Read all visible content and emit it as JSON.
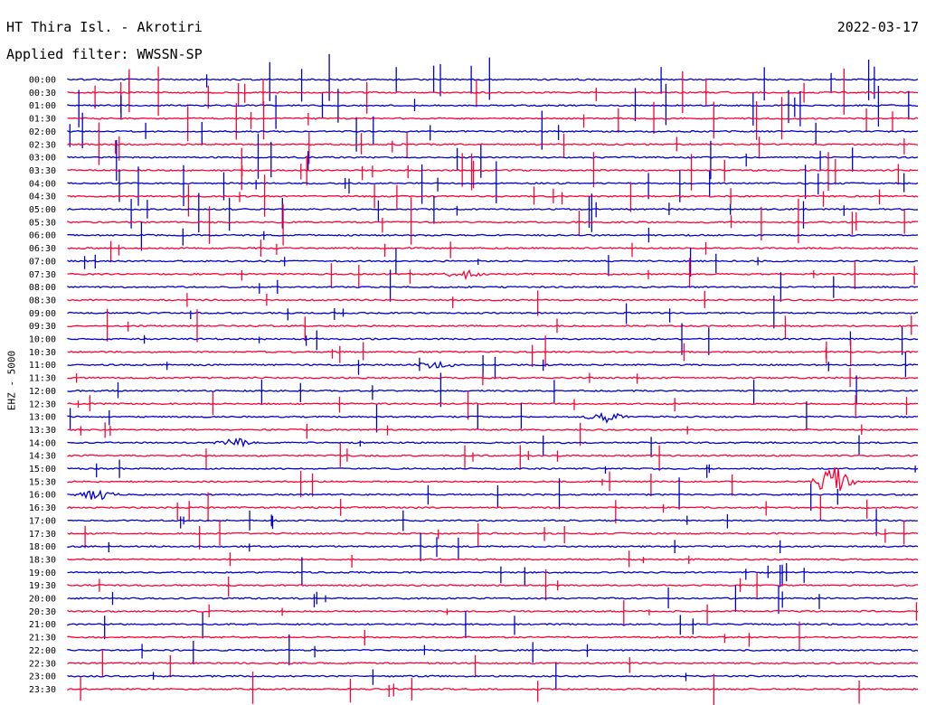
{
  "header": {
    "station": "HT Thira Isl. - Akrotiri",
    "date": "2022-03-17",
    "filter": "Applied filter: WWSSN-SP",
    "channel": "EHZ - 5000"
  },
  "colors": {
    "trace_a": "#0000cc",
    "trace_b": "#ff0033",
    "background": "#ffffff",
    "text": "#000000"
  },
  "chart_data": {
    "type": "line",
    "title": "HT Thira Isl. - Akrotiri",
    "date": "2022-03-17",
    "filter": "WWSSN-SP",
    "ylabel": "EHZ - 5000",
    "xlabel": "",
    "grid": false,
    "legend": "none",
    "row_labels": [
      "00:00",
      "00:30",
      "01:00",
      "01:30",
      "02:00",
      "02:30",
      "03:00",
      "03:30",
      "04:00",
      "04:30",
      "05:00",
      "05:30",
      "06:00",
      "06:30",
      "07:00",
      "07:30",
      "08:00",
      "08:30",
      "09:00",
      "09:30",
      "10:00",
      "10:30",
      "11:00",
      "11:30",
      "12:00",
      "12:30",
      "13:00",
      "13:30",
      "14:00",
      "14:30",
      "15:00",
      "15:30",
      "16:00",
      "16:30",
      "17:00",
      "17:30",
      "18:00",
      "18:30",
      "19:00",
      "19:30",
      "20:00",
      "20:30",
      "21:00",
      "21:30",
      "22:00",
      "22:30",
      "23:00",
      "23:30"
    ],
    "row_minutes": 30,
    "noted_events": [
      {
        "row": "15:30",
        "minute_offset": 27,
        "description": "large burst"
      },
      {
        "row": "07:30",
        "minute_offset": 14,
        "description": "burst"
      },
      {
        "row": "11:00",
        "minute_offset": 13,
        "description": "burst"
      },
      {
        "row": "14:00",
        "minute_offset": 6,
        "description": "burst"
      },
      {
        "row": "13:00",
        "minute_offset": 19,
        "description": "burst"
      },
      {
        "row": "16:00",
        "minute_offset": 1,
        "description": "burst"
      }
    ]
  }
}
